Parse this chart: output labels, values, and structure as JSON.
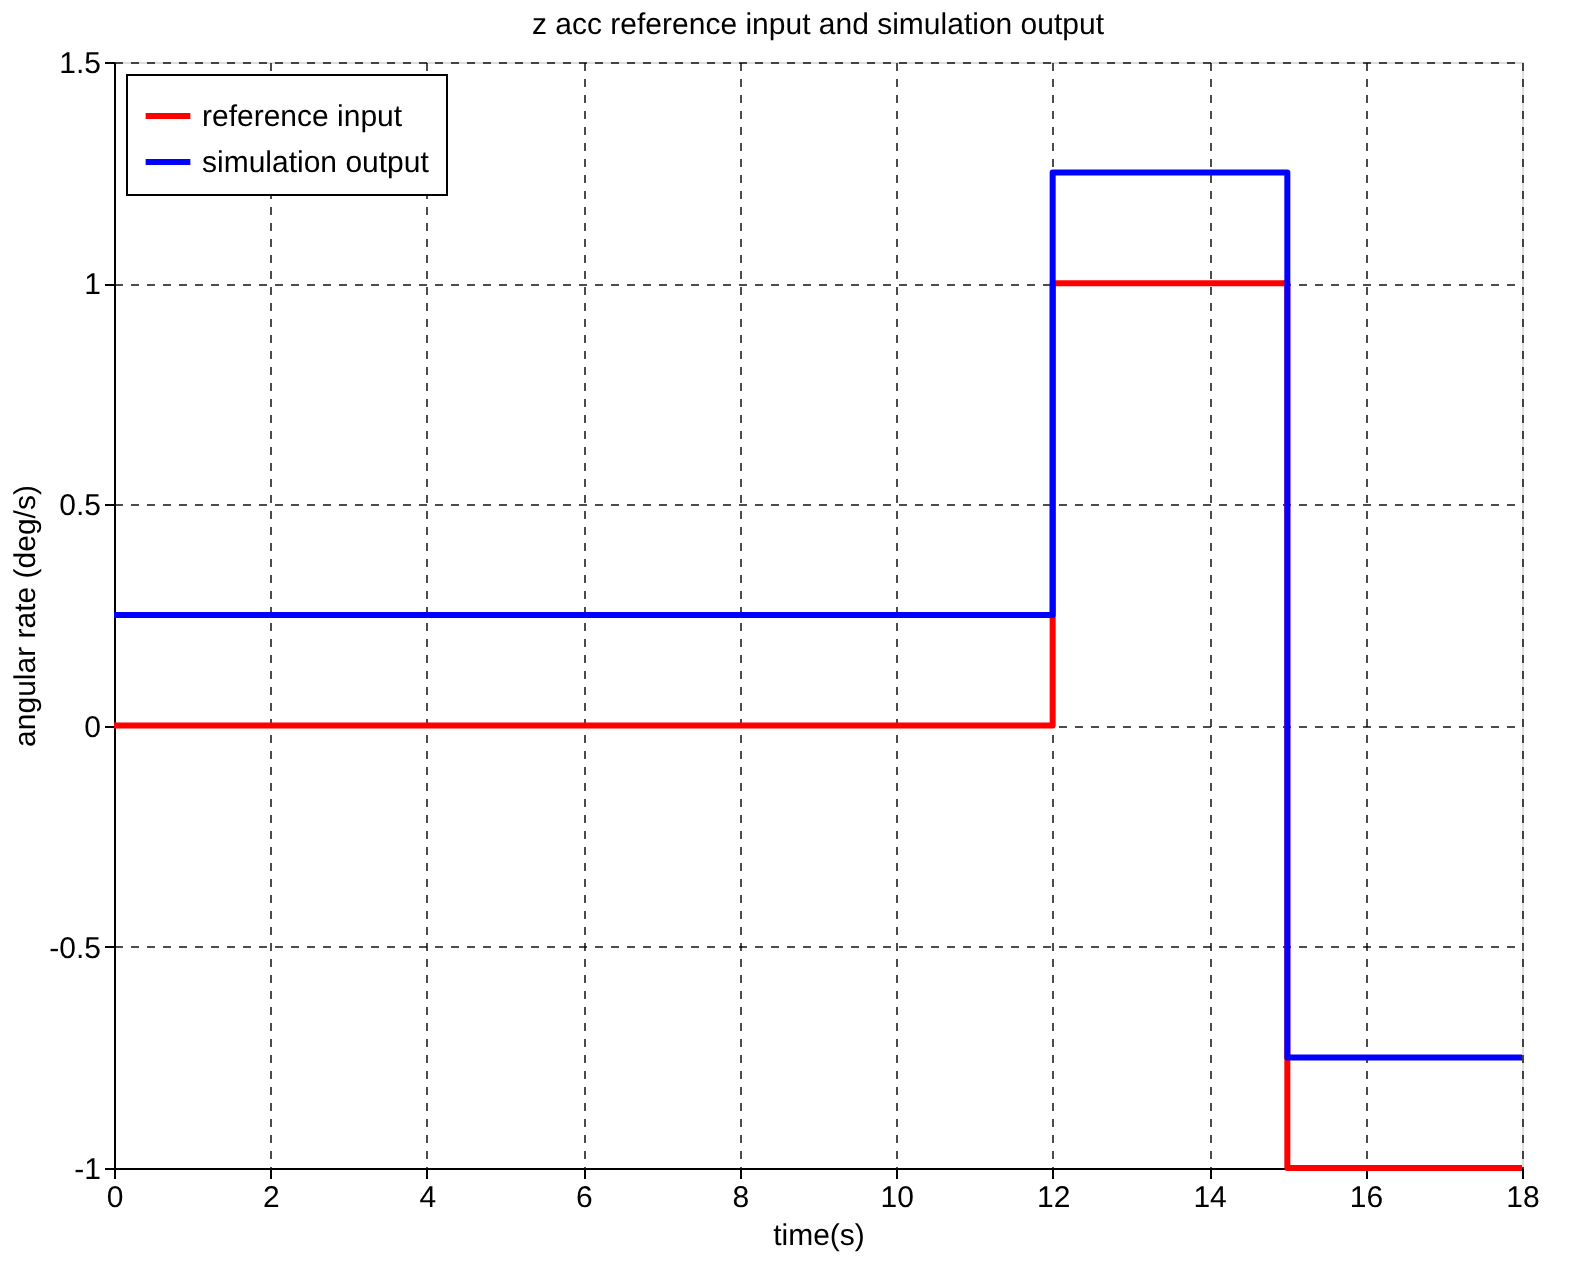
{
  "chart_data": {
    "type": "line",
    "title": "z acc reference input and simulation output",
    "xlabel": "time(s)",
    "ylabel": "angular rate (deg/s)",
    "xlim": [
      0,
      18
    ],
    "xticks": [
      0,
      2,
      4,
      6,
      8,
      10,
      12,
      14,
      16,
      18
    ],
    "ylim": [
      -1,
      1.5
    ],
    "yticks": [
      -1,
      -0.5,
      0,
      0.5,
      1,
      1.5
    ],
    "grid": true,
    "legend": "top left",
    "line_style": "solid",
    "marker": "none",
    "series": [
      {
        "name": "reference input",
        "color": "#ff0000",
        "x": [
          0,
          12,
          12,
          15,
          15,
          18
        ],
        "values": [
          0,
          0,
          1,
          1,
          -1,
          -1
        ]
      },
      {
        "name": "simulation output",
        "color": "#0000ff",
        "x": [
          0,
          12,
          12,
          15,
          15,
          18
        ],
        "values": [
          0.25,
          0.25,
          1.25,
          1.25,
          -0.75,
          -0.75
        ]
      }
    ]
  }
}
